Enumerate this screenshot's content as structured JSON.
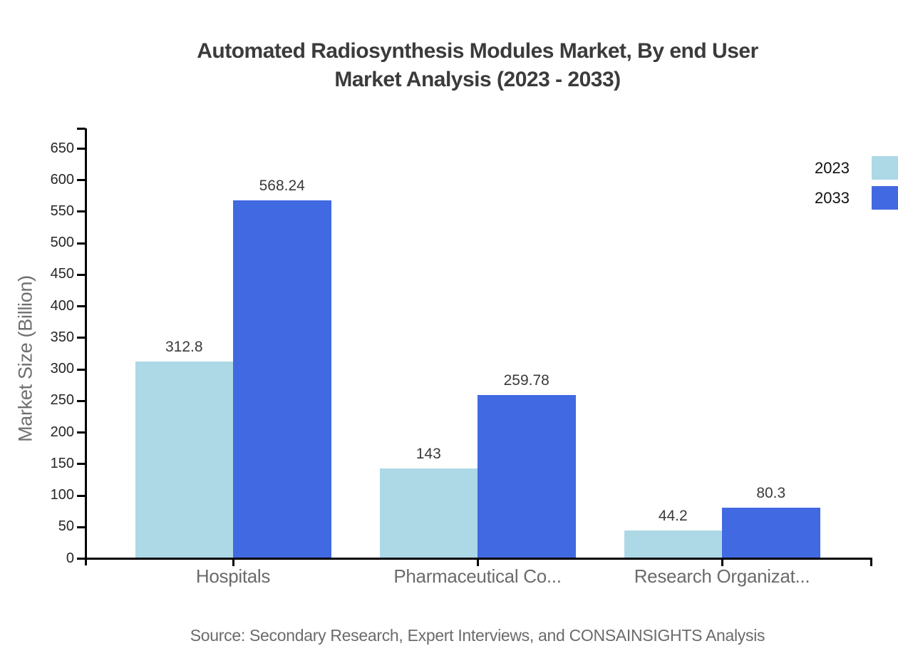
{
  "title": {
    "line1": "Automated Radiosynthesis Modules Market, By end User",
    "line2": "Market Analysis (2023 - 2033)"
  },
  "footer": {
    "source": "Source: Secondary Research, Expert Interviews, and CONSAINSIGHTS Analysis"
  },
  "colors": {
    "series_2023": "#ADD8E6",
    "series_2033": "#4169E1",
    "axis": "#000000",
    "tick_label": "#262626",
    "category_label": "#6b6b6b",
    "value_label": "#3a3a3a",
    "title_text": "#3b3b3b",
    "muted_text": "#6b6b6b"
  },
  "chart_data": {
    "type": "bar",
    "title": "Automated Radiosynthesis Modules Market, By end User Market Analysis (2023 - 2033)",
    "categories": [
      "Hospitals",
      "Pharmaceutical Co...",
      "Research Organizat..."
    ],
    "series": [
      {
        "name": "2023",
        "color": "#ADD8E6",
        "values": [
          312.8,
          143,
          44.2
        ],
        "labels": [
          "312.8",
          "143",
          "44.2"
        ]
      },
      {
        "name": "2033",
        "color": "#4169E1",
        "values": [
          568.24,
          259.78,
          80.3
        ],
        "labels": [
          "568.24",
          "259.78",
          "80.3"
        ]
      }
    ],
    "xlabel": "",
    "ylabel": "Market Size (Billion)",
    "y_ticks": [
      0,
      50,
      100,
      150,
      200,
      250,
      300,
      350,
      400,
      450,
      500,
      550,
      600,
      650
    ],
    "ylim": [
      0,
      650
    ],
    "grid": false,
    "legend_position": "top-right",
    "bar_value_labels": true
  }
}
